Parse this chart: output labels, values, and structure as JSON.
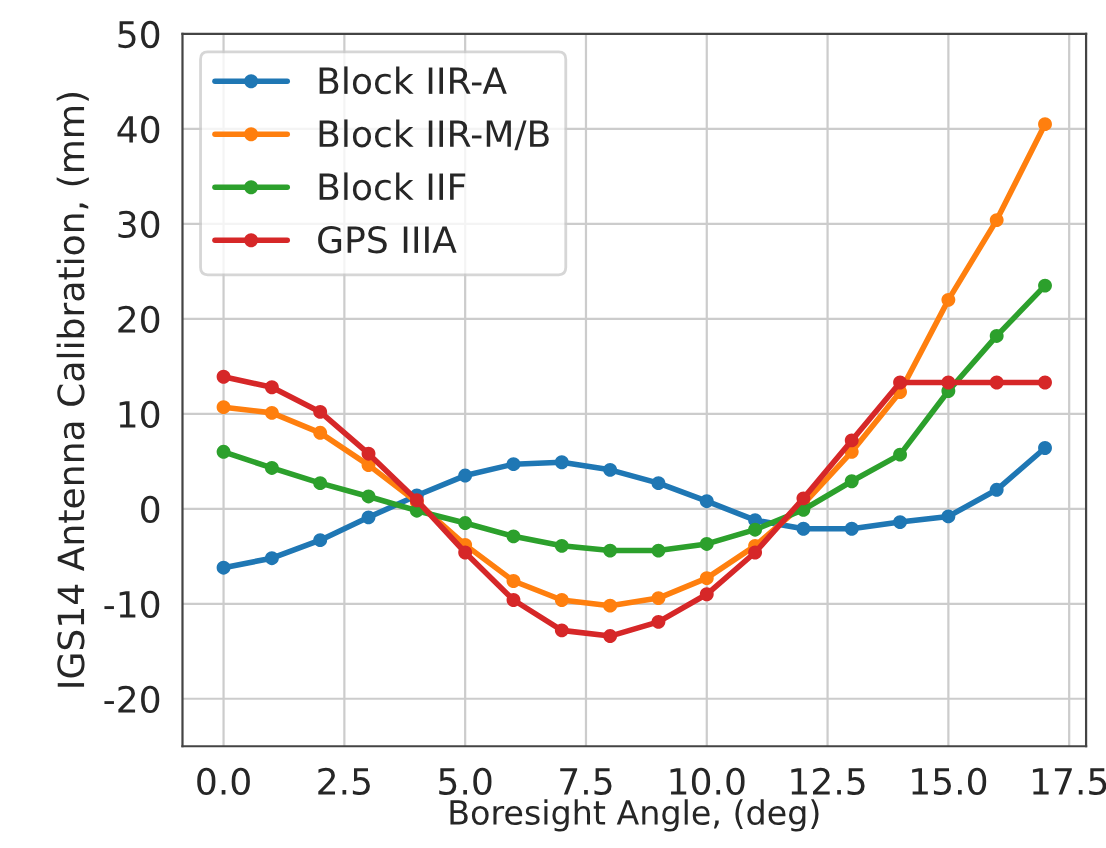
{
  "chart_data": {
    "type": "line",
    "xlabel": "Boresight Angle, (deg)",
    "ylabel": "IGS14 Antenna Calibration, (mm)",
    "x": [
      0,
      1,
      2,
      3,
      4,
      5,
      6,
      7,
      8,
      9,
      10,
      11,
      12,
      13,
      14,
      15,
      16,
      17
    ],
    "series": [
      {
        "name": "Block IIR-A",
        "color": "#1f77b4",
        "values": [
          -6.2,
          -5.2,
          -3.3,
          -0.9,
          1.4,
          3.5,
          4.7,
          4.9,
          4.1,
          2.7,
          0.8,
          -1.2,
          -2.1,
          -2.1,
          -1.4,
          -0.8,
          2.0,
          6.4
        ]
      },
      {
        "name": "Block IIR-M/B",
        "color": "#ff7f0e",
        "values": [
          10.7,
          10.1,
          8.0,
          4.6,
          0.7,
          -3.8,
          -7.6,
          -9.6,
          -10.2,
          -9.4,
          -7.3,
          -3.9,
          0.5,
          6.0,
          12.3,
          22.0,
          30.4,
          40.5
        ]
      },
      {
        "name": "Block IIF",
        "color": "#2ca02c",
        "values": [
          6.0,
          4.3,
          2.7,
          1.3,
          -0.2,
          -1.5,
          -2.9,
          -3.9,
          -4.4,
          -4.4,
          -3.7,
          -2.2,
          -0.1,
          2.9,
          5.7,
          12.4,
          18.2,
          23.5
        ]
      },
      {
        "name": "GPS IIIA",
        "color": "#d62728",
        "values": [
          13.9,
          12.8,
          10.2,
          5.8,
          0.9,
          -4.6,
          -9.6,
          -12.8,
          -13.4,
          -11.9,
          -9.0,
          -4.6,
          1.1,
          7.2,
          13.3,
          13.3,
          13.3,
          13.3
        ]
      }
    ],
    "xlim": [
      -0.85,
      17.85
    ],
    "xticks": [
      {
        "value": 0,
        "label": "0.0"
      },
      {
        "value": 2.5,
        "label": "2.5"
      },
      {
        "value": 5,
        "label": "5.0"
      },
      {
        "value": 7.5,
        "label": "7.5"
      },
      {
        "value": 10,
        "label": "10.0"
      },
      {
        "value": 12.5,
        "label": "12.5"
      },
      {
        "value": 15,
        "label": "15.0"
      },
      {
        "value": 17.5,
        "label": "17.5"
      }
    ],
    "ylim": [
      -25,
      50
    ],
    "yticks": [
      -20,
      -10,
      0,
      10,
      20,
      30,
      40,
      50
    ],
    "grid": true,
    "legend": "top left",
    "marker": "circle",
    "line_style": "solid"
  }
}
